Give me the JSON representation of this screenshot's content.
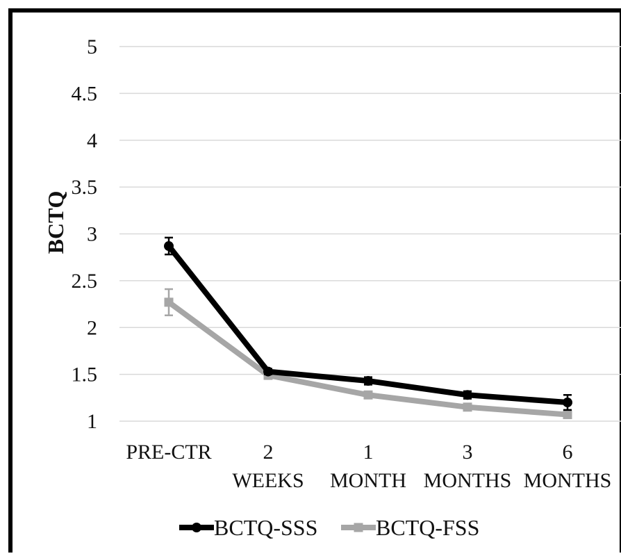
{
  "chart_data": {
    "type": "line",
    "title": "",
    "ylabel": "BCTQ",
    "xlabel": "",
    "ylim": [
      1,
      5
    ],
    "yticks": [
      "1",
      "1.5",
      "2",
      "2.5",
      "3",
      "3.5",
      "4",
      "4.5",
      "5"
    ],
    "categories": [
      [
        "PRE-CTR"
      ],
      [
        "2",
        "WEEKS"
      ],
      [
        "1",
        "MONTH"
      ],
      [
        "3",
        "MONTHS"
      ],
      [
        "6",
        "MONTHS"
      ]
    ],
    "grid": true,
    "legend_position": "bottom",
    "error_bars": true,
    "series": [
      {
        "name": "BCTQ-SSS",
        "color": "#000000",
        "marker": "circle",
        "values": [
          2.87,
          1.53,
          1.43,
          1.28,
          1.2
        ],
        "errors": [
          0.09,
          0.03,
          0.04,
          0.04,
          0.08
        ]
      },
      {
        "name": "BCTQ-FSS",
        "color": "#a6a6a6",
        "marker": "square",
        "values": [
          2.27,
          1.49,
          1.28,
          1.15,
          1.07
        ],
        "errors": [
          0.14,
          0.04,
          0.03,
          0.03,
          0.03
        ]
      }
    ]
  }
}
